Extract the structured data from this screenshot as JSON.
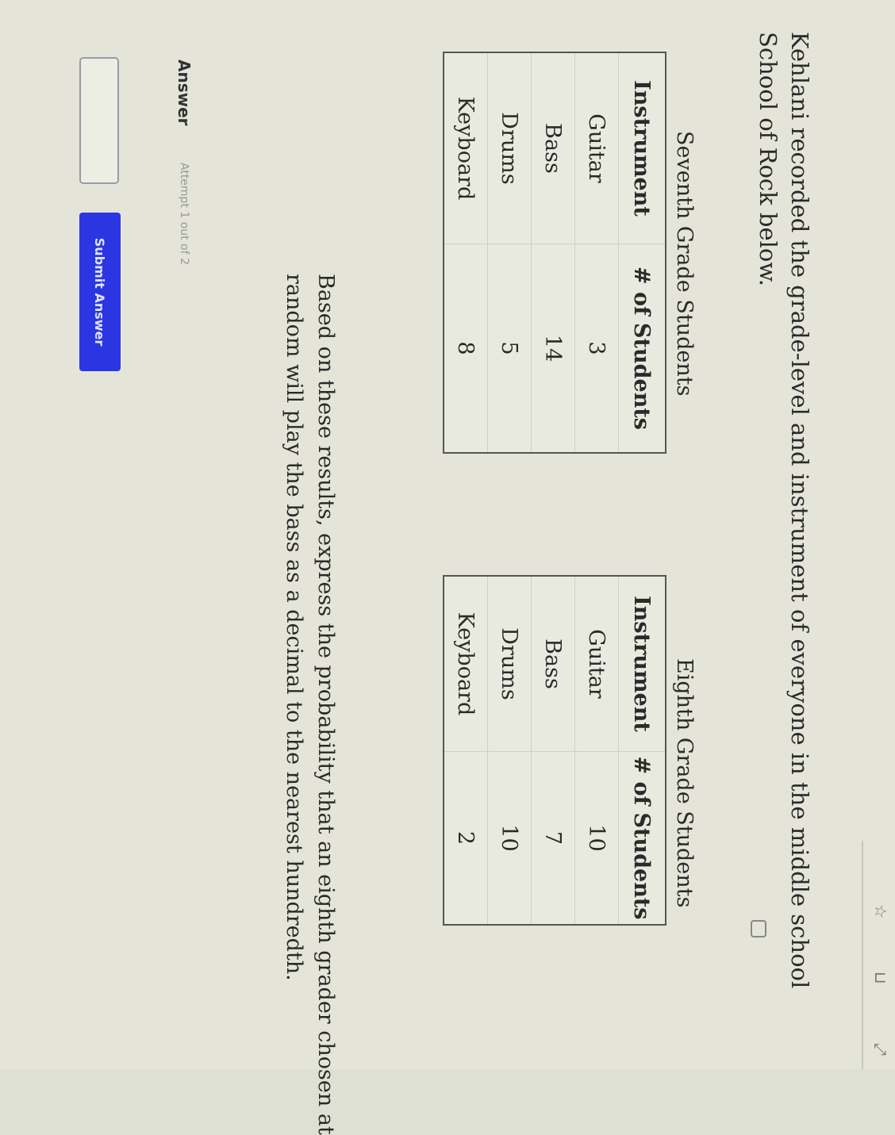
{
  "question": {
    "intro_line1": "Kehlani recorded the grade-level and instrument of everyone in the middle school",
    "intro_line2": "School of Rock below.",
    "prompt_line1": "Based on these results, express the probability that an eighth grader chosen at",
    "prompt_line2": "random will play the bass as a decimal to the nearest hundredth."
  },
  "tables": [
    {
      "caption": "Seventh Grade Students",
      "headers": [
        "Instrument",
        "# of Students"
      ],
      "rows": [
        [
          "Guitar",
          "3"
        ],
        [
          "Bass",
          "14"
        ],
        [
          "Drums",
          "5"
        ],
        [
          "Keyboard",
          "8"
        ]
      ]
    },
    {
      "caption": "Eighth Grade Students",
      "headers": [
        "Instrument",
        "# of Students"
      ],
      "rows": [
        [
          "Guitar",
          "10"
        ],
        [
          "Bass",
          "7"
        ],
        [
          "Drums",
          "10"
        ],
        [
          "Keyboard",
          "2"
        ]
      ]
    }
  ],
  "answer": {
    "label": "Answer",
    "attempt": "Attempt 1 out of 2",
    "value": "",
    "submit_label": "Submit Answer"
  },
  "colors": {
    "submit": "#2b36e2",
    "background": "#e4e5d8"
  },
  "icons": [
    "star-icon",
    "bookmark-icon",
    "fullscreen-icon",
    "calculator-icon"
  ]
}
